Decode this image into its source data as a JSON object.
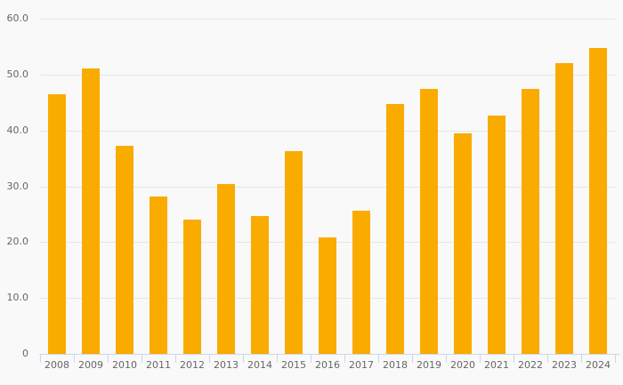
{
  "chart_data": {
    "type": "bar",
    "title": "",
    "xlabel": "",
    "ylabel": "",
    "categories": [
      "2008",
      "2009",
      "2010",
      "2011",
      "2012",
      "2013",
      "2014",
      "2015",
      "2016",
      "2017",
      "2018",
      "2019",
      "2020",
      "2021",
      "2022",
      "2023",
      "2024"
    ],
    "values": [
      46.5,
      51.1,
      37.3,
      28.1,
      24.1,
      30.4,
      24.6,
      36.3,
      20.9,
      25.7,
      44.8,
      47.4,
      39.4,
      42.6,
      47.5,
      52.0,
      54.8
    ],
    "ylim": [
      0,
      60
    ],
    "yticks": [
      {
        "value": 0,
        "label": "0"
      },
      {
        "value": 10,
        "label": "10.0"
      },
      {
        "value": 20,
        "label": "20.0"
      },
      {
        "value": 30,
        "label": "30.0"
      },
      {
        "value": 40,
        "label": "40.0"
      },
      {
        "value": 50,
        "label": "50.0"
      },
      {
        "value": 60,
        "label": "60.0"
      }
    ],
    "grid": "horizontal-only",
    "legend": "none",
    "colors": {
      "bar": "#FAAB00",
      "background": "#f9f9f9",
      "gridline": "#e6e6e6",
      "axis_line": "#ccd6eb",
      "label_text": "#666666"
    }
  }
}
